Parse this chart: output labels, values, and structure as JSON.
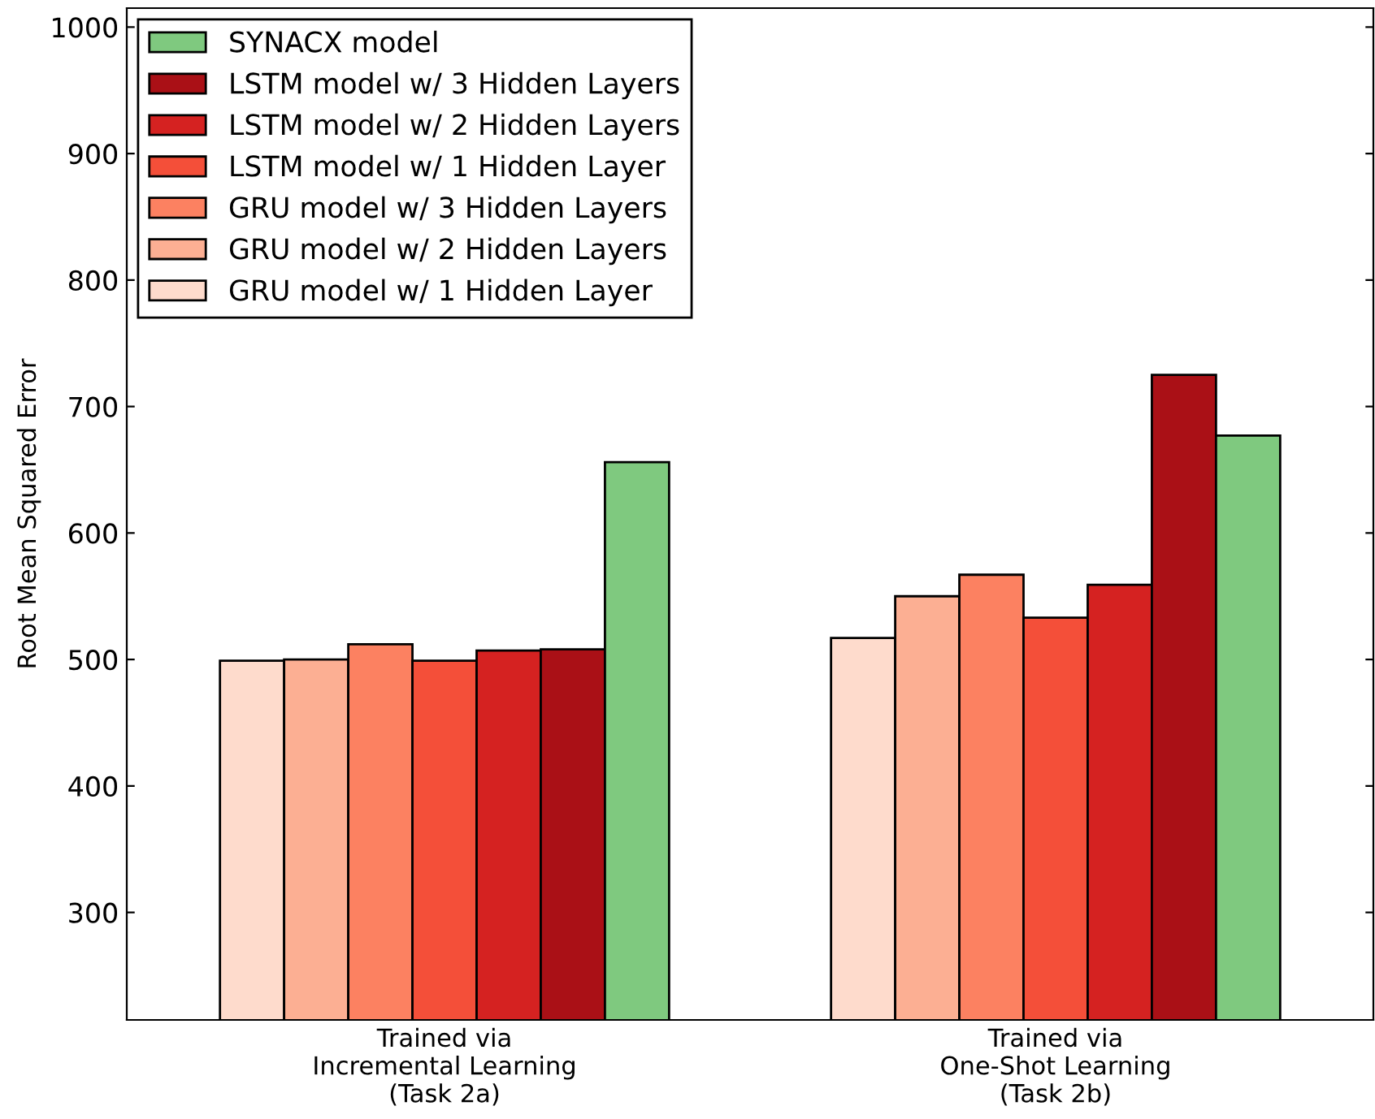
{
  "chart_data": {
    "type": "bar",
    "ylabel": "Root Mean Squared Error",
    "categories": [
      "Trained via\nIncremental Learning\n(Task 2a)",
      "Trained via\nOne-Shot Learning\n(Task 2b)"
    ],
    "series": [
      {
        "name": "GRU model w/ 1 Hidden Layer",
        "color": "#fedbcc",
        "values": [
          499,
          517
        ]
      },
      {
        "name": "GRU model w/ 2 Hidden Layers",
        "color": "#fcaf93",
        "values": [
          500,
          550
        ]
      },
      {
        "name": "GRU model w/ 3 Hidden Layers",
        "color": "#fc8161",
        "values": [
          512,
          567
        ]
      },
      {
        "name": "LSTM model w/ 1 Hidden Layer",
        "color": "#f44f39",
        "values": [
          499,
          533
        ]
      },
      {
        "name": "LSTM model w/ 2 Hidden Layers",
        "color": "#d52221",
        "values": [
          507,
          559
        ]
      },
      {
        "name": "LSTM model w/ 3 Hidden Layers",
        "color": "#aa1016",
        "values": [
          508,
          725
        ]
      },
      {
        "name": "SYNACX model",
        "color": "#7fc97f",
        "values": [
          656,
          677
        ]
      }
    ],
    "ylim": [
      215,
      1015
    ],
    "yticks": [
      300,
      400,
      500,
      600,
      700,
      800,
      900,
      1000
    ],
    "grid": false,
    "legend": "top left"
  }
}
